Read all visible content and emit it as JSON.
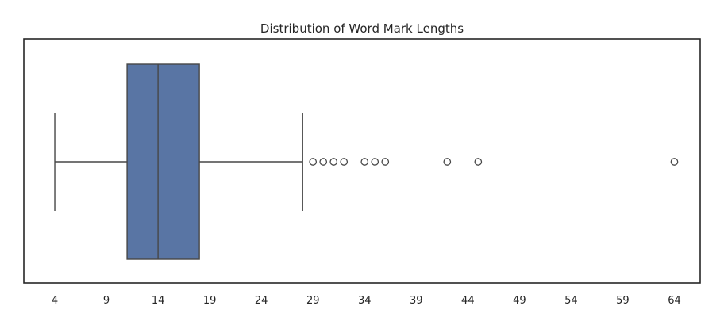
{
  "chart_data": {
    "type": "boxplot",
    "title": "Distribution of Word Mark Lengths",
    "xlabel": "",
    "ylabel": "",
    "xlim": [
      1,
      66.5
    ],
    "xticks": [
      4,
      9,
      14,
      19,
      24,
      29,
      34,
      39,
      44,
      49,
      54,
      59,
      64
    ],
    "grid": false,
    "box": {
      "whisker_low": 4,
      "q1": 11,
      "median": 14,
      "q3": 18,
      "whisker_high": 28,
      "color": "#5975a4",
      "line_color": "#474747"
    },
    "outliers": [
      29,
      30,
      31,
      32,
      34,
      35,
      36,
      42,
      45,
      64
    ]
  }
}
